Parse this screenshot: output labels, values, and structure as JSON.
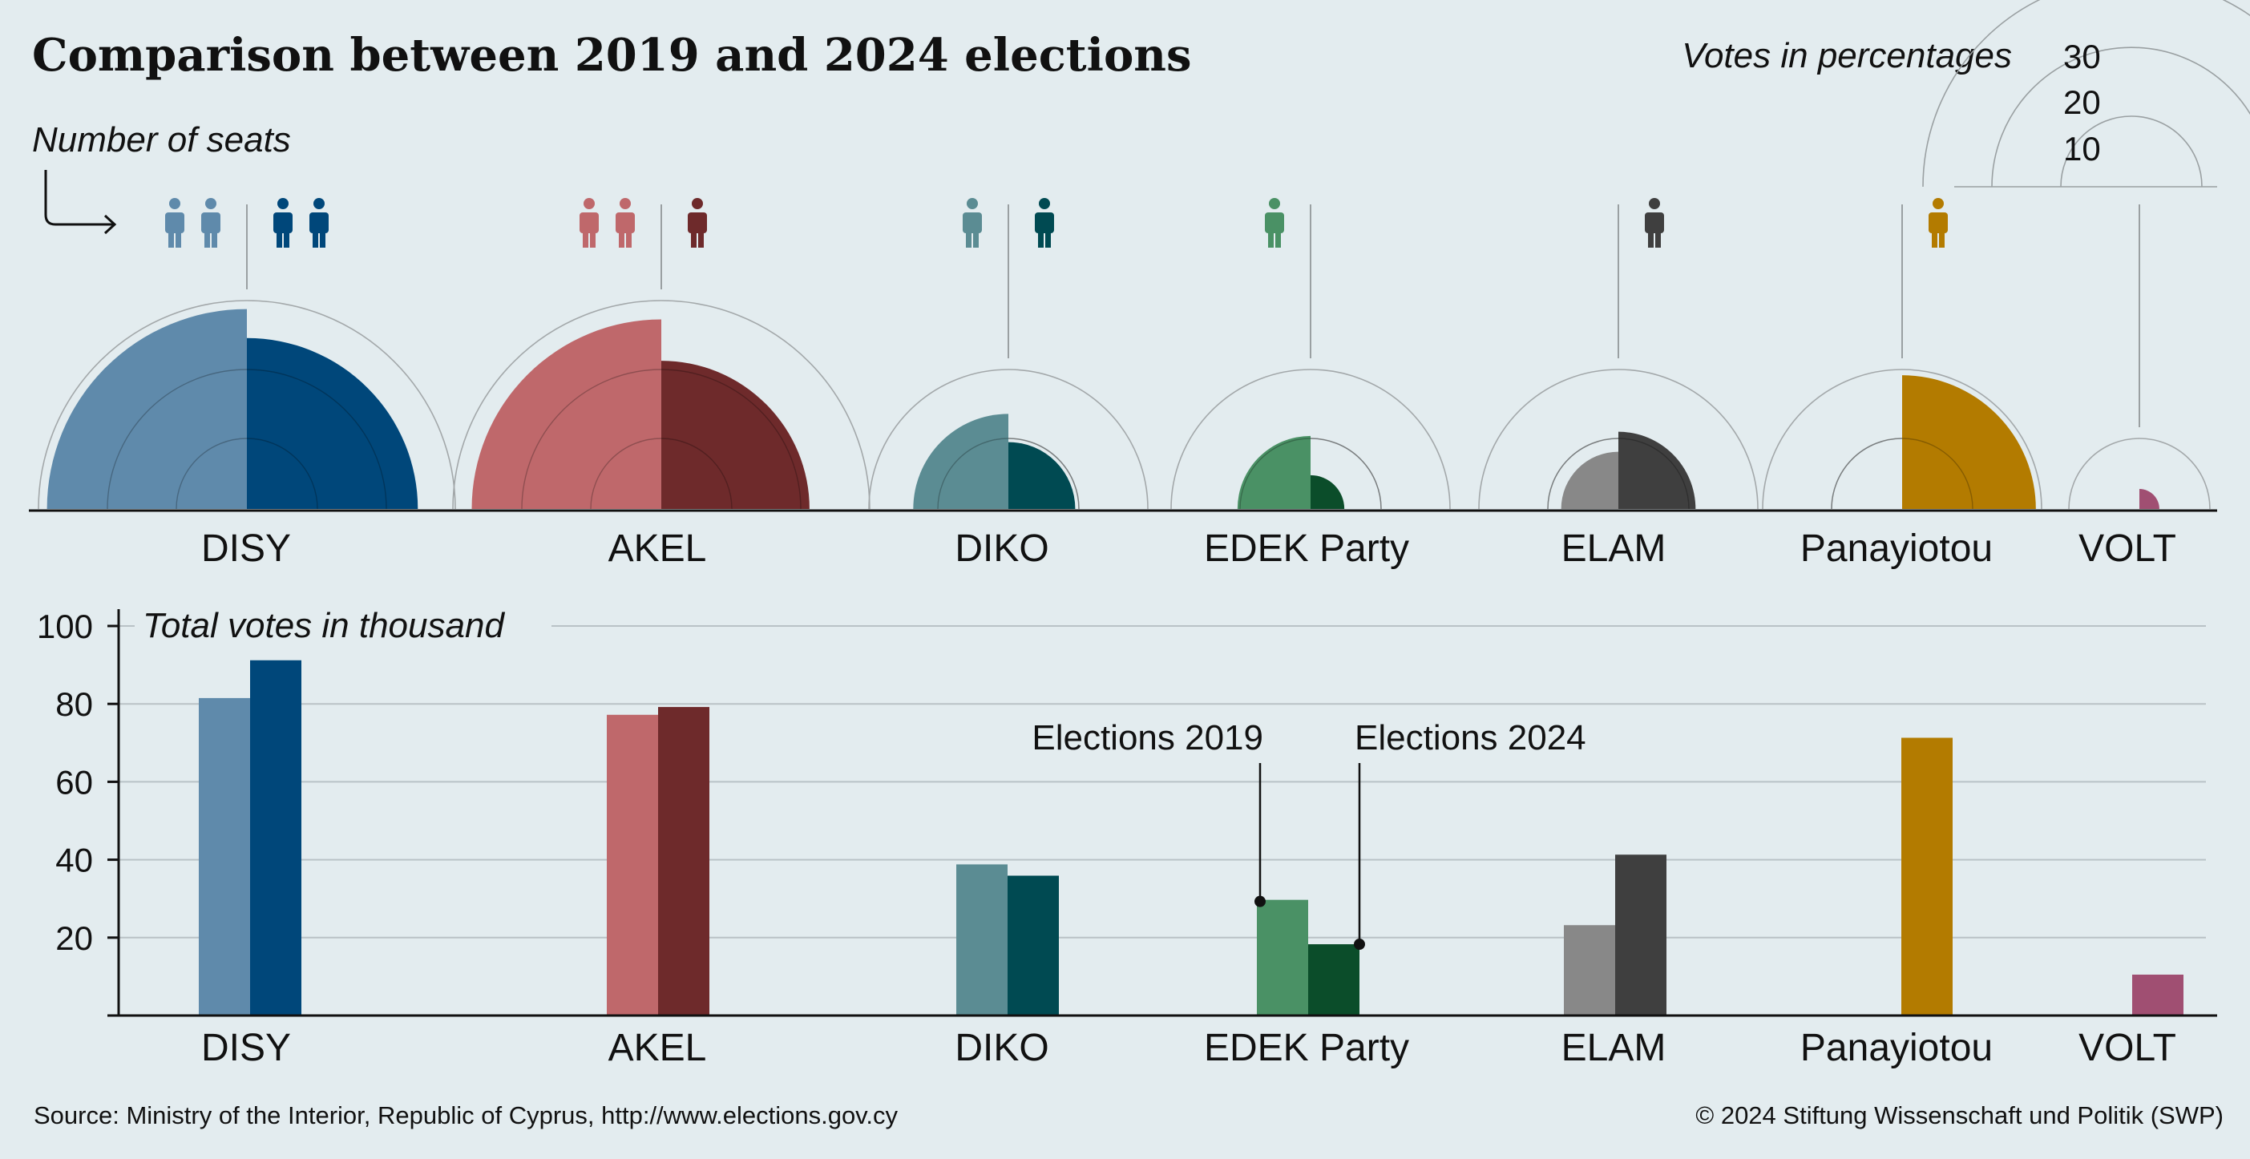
{
  "chart_data": {
    "type": "bar",
    "title": "Comparison between 2019 and 2024 elections",
    "seats_label": "Number of seats",
    "votes_pct_label": "Votes in percentages",
    "pct_scale_ticks": [
      10,
      20,
      30
    ],
    "total_votes_label": "Total votes in thousand",
    "ylim": [
      0,
      100
    ],
    "yticks": [
      20,
      40,
      60,
      80,
      100
    ],
    "series_labels": [
      "Elections 2019",
      "Elections 2024"
    ],
    "categories": [
      "DISY",
      "AKEL",
      "DIKO",
      "EDEK Party",
      "ELAM",
      "Panayiotou",
      "VOLT"
    ],
    "parties": [
      {
        "name": "DISY",
        "color_2019": "#5f8aab",
        "color_2024": "#00477a",
        "seats_2019": 2,
        "seats_2024": 2,
        "pct_2019": 29.0,
        "pct_2024": 24.8,
        "votes_2019": 81.5,
        "votes_2024": 91.2
      },
      {
        "name": "AKEL",
        "color_2019": "#bf686b",
        "color_2024": "#6e2a2b",
        "seats_2019": 2,
        "seats_2024": 1,
        "pct_2019": 27.5,
        "pct_2024": 21.5,
        "votes_2019": 77.2,
        "votes_2024": 79.2
      },
      {
        "name": "DIKO",
        "color_2019": "#5b8c93",
        "color_2024": "#004a52",
        "seats_2019": 1,
        "seats_2024": 1,
        "pct_2019": 13.8,
        "pct_2024": 9.7,
        "votes_2019": 38.8,
        "votes_2024": 35.9
      },
      {
        "name": "EDEK Party",
        "color_2019": "#4a9165",
        "color_2024": "#0b4d2a",
        "seats_2019": 1,
        "seats_2024": 0,
        "pct_2019": 10.6,
        "pct_2024": 4.9,
        "votes_2019": 29.7,
        "votes_2024": 18.3
      },
      {
        "name": "ELAM",
        "color_2019": "#888888",
        "color_2024": "#3f3f3f",
        "seats_2019": 0,
        "seats_2024": 1,
        "pct_2019": 8.3,
        "pct_2024": 11.2,
        "votes_2019": 23.2,
        "votes_2024": 41.3
      },
      {
        "name": "Panayiotou",
        "color_2019": null,
        "color_2024": "#b37b00",
        "seats_2019": 0,
        "seats_2024": 1,
        "pct_2019": null,
        "pct_2024": 19.4,
        "votes_2019": null,
        "votes_2024": 71.3
      },
      {
        "name": "VOLT",
        "color_2019": null,
        "color_2024": "#a04f72",
        "seats_2019": 0,
        "seats_2024": 0,
        "pct_2019": null,
        "pct_2024": 2.9,
        "votes_2019": null,
        "votes_2024": 10.5
      }
    ],
    "source": "Source: Ministry of the Interior, Republic of Cyprus, http://www.elections.gov.cy",
    "copyright": "© 2024 Stiftung Wissenschaft und Politik (SWP)"
  }
}
